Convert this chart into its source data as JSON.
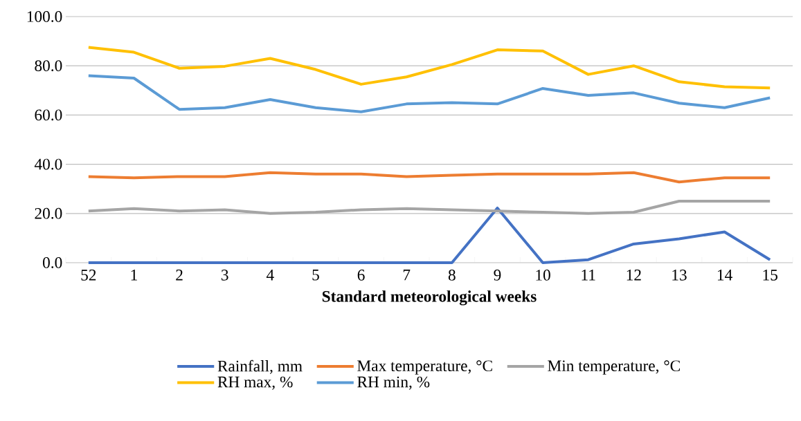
{
  "chart_data": {
    "type": "line",
    "xlabel": "Standard meteorological weeks",
    "categories": [
      "52",
      "1",
      "2",
      "3",
      "4",
      "5",
      "6",
      "7",
      "8",
      "9",
      "10",
      "11",
      "12",
      "13",
      "14",
      "15"
    ],
    "series": [
      {
        "name": "Rainfall, mm",
        "color": "#4472c4",
        "values": [
          0,
          0,
          0,
          0,
          0,
          0,
          0,
          0,
          0,
          22.2,
          0,
          1.2,
          7.6,
          9.7,
          12.5,
          1.2
        ]
      },
      {
        "name": "Max temperature, °C",
        "color": "#ed7d31",
        "values": [
          35,
          34.5,
          35,
          35,
          36.6,
          36,
          36,
          35,
          35.5,
          36,
          36,
          36,
          36.6,
          32.8,
          34.5,
          34.5
        ]
      },
      {
        "name": "Min temperature, °C",
        "color": "#a5a5a5",
        "values": [
          21,
          22,
          21,
          21.5,
          20,
          20.5,
          21.5,
          22,
          21.5,
          21,
          20.5,
          20,
          20.5,
          25,
          25,
          25
        ]
      },
      {
        "name": "RH max, %",
        "color": "#ffc000",
        "values": [
          87.5,
          85.5,
          79,
          79.8,
          83,
          78.5,
          72.5,
          75.5,
          80.5,
          86.5,
          86,
          76.5,
          80,
          73.5,
          71.5,
          71
        ]
      },
      {
        "name": "RH min, %",
        "color": "#5b9bd5",
        "values": [
          76,
          75,
          62.3,
          63,
          66.3,
          63,
          61.3,
          64.5,
          65,
          64.5,
          70.8,
          68,
          69,
          64.8,
          63,
          67
        ]
      }
    ],
    "ylim": [
      0,
      100
    ],
    "yticks": [
      {
        "value": 0,
        "label": "0.0"
      },
      {
        "value": 20,
        "label": "20.0"
      },
      {
        "value": 40,
        "label": "40.0"
      },
      {
        "value": 60,
        "label": "60.0"
      },
      {
        "value": 80,
        "label": "80.0"
      },
      {
        "value": 100,
        "label": "100.0"
      }
    ],
    "grid": "y",
    "legend": "bottom",
    "marker": "none",
    "line_style": "solid"
  }
}
